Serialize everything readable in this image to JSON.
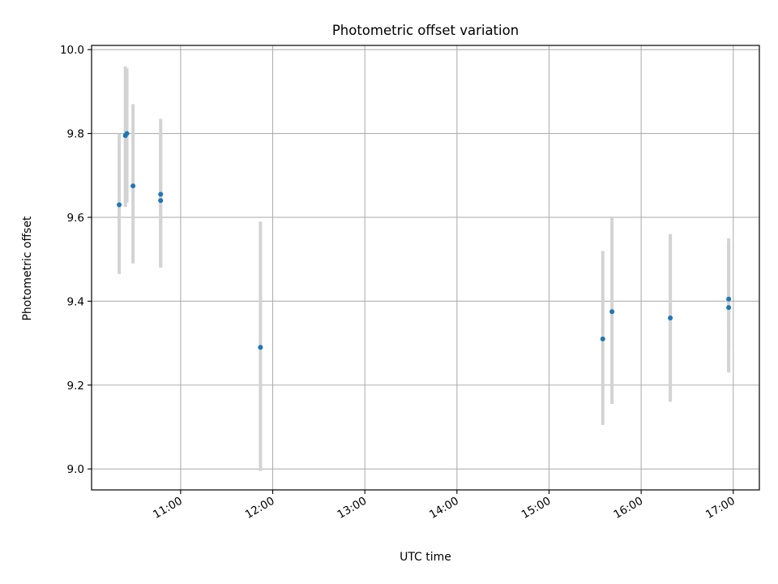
{
  "chart_data": {
    "type": "scatter",
    "title": "Photometric offset variation",
    "xlabel": "UTC time",
    "ylabel": "Photometric offset",
    "x_ticks": [
      "11:00",
      "12:00",
      "13:00",
      "14:00",
      "15:00",
      "16:00",
      "17:00"
    ],
    "y_ticks": [
      "9.0",
      "9.2",
      "9.4",
      "9.6",
      "9.8",
      "10.0"
    ],
    "xlim": [
      "10:02",
      "17:17"
    ],
    "ylim": [
      8.95,
      10.01
    ],
    "grid": true,
    "point_color": "#1f77b4",
    "errorbar_color": "#d3d3d3",
    "points": [
      {
        "time": "10:20",
        "y": 9.63,
        "err_low": 9.465,
        "err_high": 9.8
      },
      {
        "time": "10:24",
        "y": 9.795,
        "err_low": 9.625,
        "err_high": 9.96
      },
      {
        "time": "10:25",
        "y": 9.8,
        "err_low": 9.635,
        "err_high": 9.955
      },
      {
        "time": "10:29",
        "y": 9.675,
        "err_low": 9.49,
        "err_high": 9.87
      },
      {
        "time": "10:47",
        "y": 9.655,
        "err_low": 9.48,
        "err_high": 9.835
      },
      {
        "time": "10:47",
        "y": 9.64,
        "err_low": 9.485,
        "err_high": 9.8
      },
      {
        "time": "11:52",
        "y": 9.29,
        "err_low": 8.995,
        "err_high": 9.59
      },
      {
        "time": "15:35",
        "y": 9.31,
        "err_low": 9.105,
        "err_high": 9.52
      },
      {
        "time": "15:41",
        "y": 9.375,
        "err_low": 9.155,
        "err_high": 9.6
      },
      {
        "time": "16:19",
        "y": 9.36,
        "err_low": 9.16,
        "err_high": 9.56
      },
      {
        "time": "16:57",
        "y": 9.405,
        "err_low": 9.23,
        "err_high": 9.55
      },
      {
        "time": "16:57",
        "y": 9.385,
        "err_low": 9.285,
        "err_high": 9.535
      }
    ]
  }
}
